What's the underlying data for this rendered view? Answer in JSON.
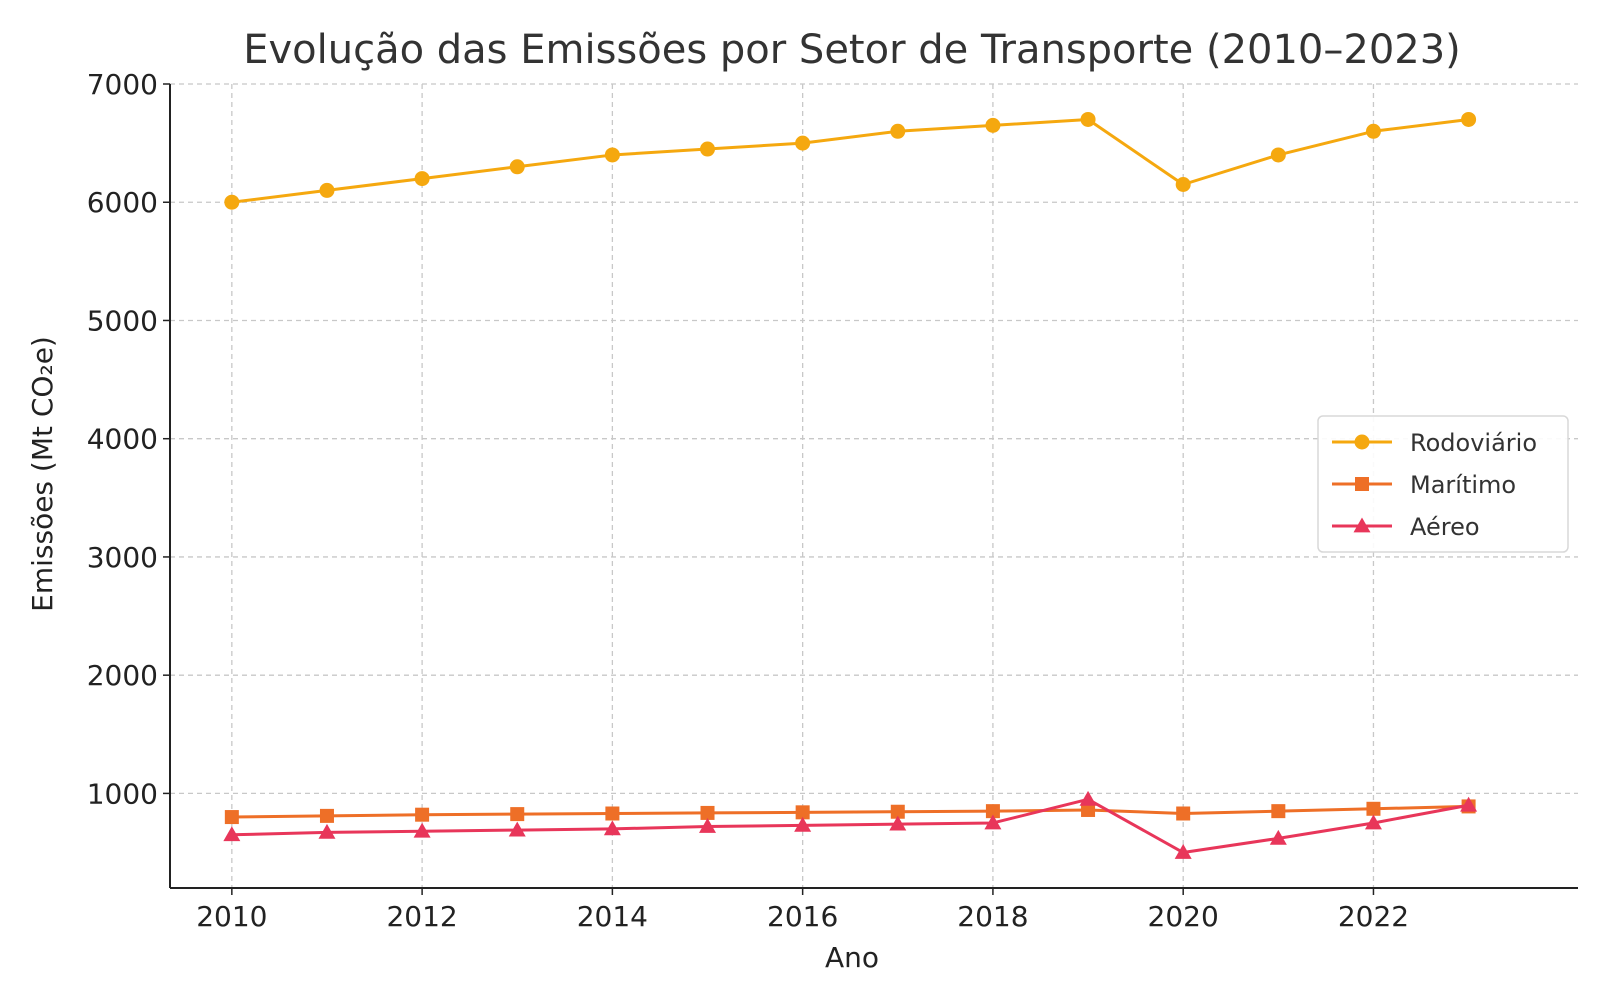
{
  "chart_data": {
    "type": "line",
    "title": "Evolução das Emissões por Setor de Transporte (2010–2023)",
    "xlabel": "Ano",
    "ylabel": "Emissões (Mt CO₂e)",
    "x": [
      2010,
      2011,
      2012,
      2013,
      2014,
      2015,
      2016,
      2017,
      2018,
      2019,
      2020,
      2021,
      2022,
      2023
    ],
    "xticks": [
      2010,
      2012,
      2014,
      2016,
      2018,
      2020,
      2022
    ],
    "yticks": [
      1000,
      2000,
      3000,
      4000,
      5000,
      6000,
      7000
    ],
    "xlim": [
      2009.35,
      2024.15
    ],
    "ylim": [
      200,
      7000
    ],
    "grid": true,
    "legend_position": "center-right",
    "series": [
      {
        "name": "Rodoviário",
        "color": "#f5a80f",
        "marker": "circle",
        "values": [
          6000,
          6100,
          6200,
          6300,
          6400,
          6450,
          6500,
          6600,
          6650,
          6700,
          6150,
          6400,
          6600,
          6700
        ]
      },
      {
        "name": "Marítimo",
        "color": "#ee6f27",
        "marker": "square",
        "values": [
          800,
          810,
          820,
          825,
          830,
          835,
          840,
          845,
          850,
          860,
          830,
          850,
          870,
          890
        ]
      },
      {
        "name": "Aéreo",
        "color": "#e8365a",
        "marker": "triangle",
        "values": [
          650,
          670,
          680,
          690,
          700,
          720,
          730,
          740,
          750,
          950,
          500,
          620,
          750,
          900
        ]
      }
    ]
  }
}
